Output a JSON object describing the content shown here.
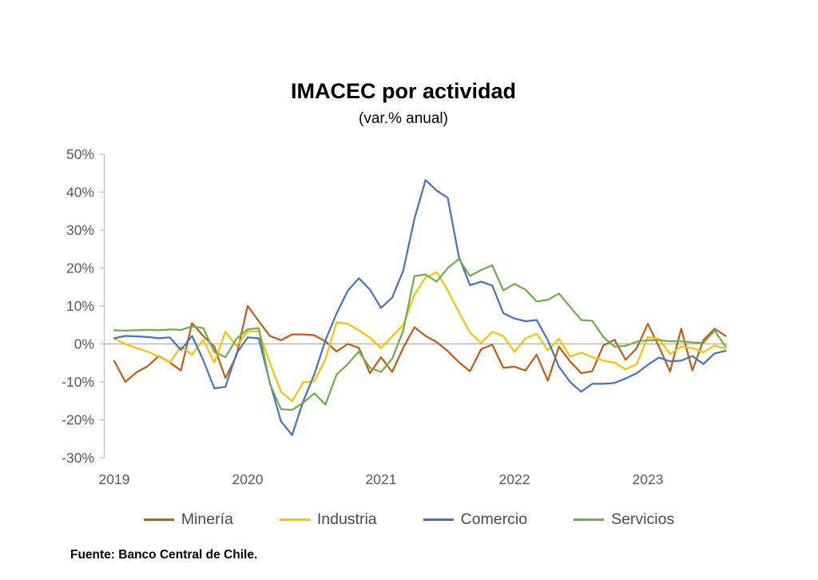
{
  "header": {
    "title": "IMACEC por actividad",
    "subtitle": "(var.% anual)"
  },
  "footer": {
    "source": "Fuente: Banco Central de Chile."
  },
  "chart_data": {
    "type": "line",
    "title": "IMACEC por actividad",
    "subtitle": "(var.% anual)",
    "ylim": [
      -30,
      50
    ],
    "yticks": [
      50,
      40,
      30,
      20,
      10,
      0,
      -10,
      -20,
      -30
    ],
    "ytick_suffix": "%",
    "xticks": [
      "2019",
      "2020",
      "2021",
      "2022",
      "2023"
    ],
    "grid": "zero-line-only",
    "legend_position": "bottom",
    "x": [
      "2019-01",
      "2019-02",
      "2019-03",
      "2019-04",
      "2019-05",
      "2019-06",
      "2019-07",
      "2019-08",
      "2019-09",
      "2019-10",
      "2019-11",
      "2019-12",
      "2020-01",
      "2020-02",
      "2020-03",
      "2020-04",
      "2020-05",
      "2020-06",
      "2020-07",
      "2020-08",
      "2020-09",
      "2020-10",
      "2020-11",
      "2020-12",
      "2021-01",
      "2021-02",
      "2021-03",
      "2021-04",
      "2021-05",
      "2021-06",
      "2021-07",
      "2021-08",
      "2021-09",
      "2021-10",
      "2021-11",
      "2021-12",
      "2022-01",
      "2022-02",
      "2022-03",
      "2022-04",
      "2022-05",
      "2022-06",
      "2022-07",
      "2022-08",
      "2022-09",
      "2022-10",
      "2022-11",
      "2022-12",
      "2023-01",
      "2023-02",
      "2023-03",
      "2023-04",
      "2023-05",
      "2023-06",
      "2023-07",
      "2023-08"
    ],
    "series": [
      {
        "name": "Minería",
        "key": "mineria",
        "color": "#C55A11",
        "values": [
          -4.5,
          -10,
          -7.5,
          -5.9,
          -3.2,
          -4.9,
          -7,
          5.5,
          2.1,
          -0.7,
          -9,
          -3,
          10,
          6,
          2.1,
          1,
          2.5,
          2.5,
          2.3,
          0.7,
          -2,
          0,
          -1,
          -7.7,
          -3.5,
          -7.4,
          -1,
          4.4,
          2.1,
          0.5,
          -1.9,
          -4.8,
          -7.2,
          -1.4,
          -0.2,
          -6.3,
          -6,
          -7,
          -2.8,
          -9.7,
          -0.7,
          -4.6,
          -7.7,
          -7.2,
          -0.4,
          1.1,
          -4.2,
          -1.1,
          5.3,
          -0.7,
          -7.3,
          4,
          -7,
          1,
          4,
          2.1
        ]
      },
      {
        "name": "Industria",
        "key": "industria",
        "color": "#FFC000",
        "values": [
          1.4,
          0,
          -1.1,
          -2,
          -3.3,
          -4.9,
          -0.7,
          -2.8,
          1.1,
          -4.9,
          3.2,
          -0.5,
          3.2,
          3.4,
          -5,
          -12.6,
          -15.1,
          -10.1,
          -9.8,
          -4,
          5.7,
          5.3,
          3.6,
          1.7,
          -1.1,
          2,
          5,
          13,
          17.5,
          18.9,
          14.1,
          8.4,
          3,
          0.3,
          3.2,
          2.1,
          -2.1,
          1.5,
          2.7,
          -1.7,
          1.4,
          -3.3,
          -2.3,
          -3.5,
          -4.4,
          -4.9,
          -6.7,
          -5.3,
          1.8,
          1.4,
          -2.7,
          -0.7,
          -1.1,
          -2.2,
          -0.4,
          -1.2
        ]
      },
      {
        "name": "Comercio",
        "key": "comercio",
        "color": "#4472C4",
        "values": [
          1.5,
          2.1,
          2,
          1.8,
          1.5,
          1.7,
          -1.6,
          2.1,
          -4.2,
          -11.7,
          -11.3,
          -2.5,
          1.7,
          1.5,
          -10.2,
          -20.4,
          -24,
          -15.1,
          -8,
          1,
          8,
          14,
          17.3,
          14.3,
          9.5,
          12.2,
          19.3,
          33,
          43.2,
          40.4,
          38.5,
          23,
          15.5,
          16.4,
          15.4,
          8.1,
          6.7,
          6,
          6.3,
          1,
          -6,
          -10,
          -12.6,
          -10.5,
          -10.5,
          -10.3,
          -9.1,
          -7.7,
          -5.5,
          -3.6,
          -4.6,
          -4.4,
          -3.2,
          -5.3,
          -2.5,
          -1.8
        ]
      },
      {
        "name": "Servicios",
        "key": "servicios",
        "color": "#70AD47",
        "values": [
          3.6,
          3.5,
          3.6,
          3.7,
          3.6,
          3.8,
          3.7,
          4.6,
          4.2,
          -2.1,
          -3.5,
          1.4,
          3.8,
          4.2,
          -10.5,
          -17.2,
          -17.4,
          -15.5,
          -13,
          -16,
          -8.1,
          -5.3,
          -2,
          -6.3,
          -7.4,
          -3.9,
          3.5,
          17.9,
          18.3,
          16.4,
          20,
          22.4,
          17.9,
          19.5,
          20.7,
          14.1,
          15.8,
          14.3,
          11.2,
          11.6,
          13.3,
          9.8,
          6.3,
          6.1,
          1.8,
          -0.7,
          -0.5,
          0.6,
          1,
          1,
          0.7,
          0.7,
          0.4,
          0.3,
          3.5,
          -0.7
        ]
      }
    ]
  }
}
